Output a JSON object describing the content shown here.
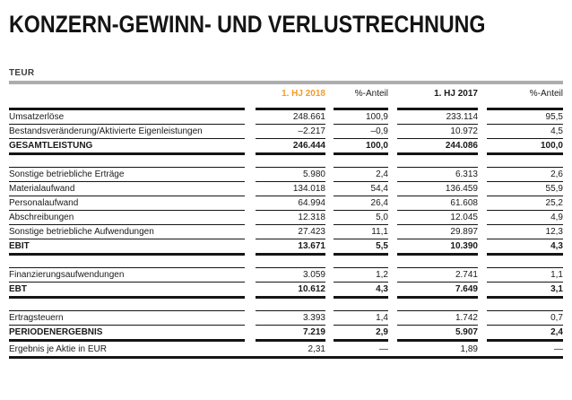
{
  "page": {
    "title": "KONZERN-GEWINN- UND VERLUSTRECHNUNG",
    "unit_label": "TEUR"
  },
  "colors": {
    "accent_orange": "#f39c2b",
    "divider_gray": "#adadad",
    "rule_black": "#151515"
  },
  "table": {
    "header": {
      "col1": "1. HJ 2018",
      "col2": "%-Anteil",
      "col3": "1. HJ 2017",
      "col4": "%-Anteil"
    },
    "sections": [
      {
        "rows": [
          {
            "label": "Umsatzerlöse",
            "bold": false,
            "top": "thick",
            "bottom": "none",
            "values": [
              "248.661",
              "100,9",
              "233.114",
              "95,5"
            ]
          },
          {
            "label": "Bestandsveränderung/Aktivierte Eigenleistungen",
            "bold": false,
            "top": "thin",
            "bottom": "none",
            "values": [
              "–2.217",
              "–0,9",
              "10.972",
              "4,5"
            ]
          },
          {
            "label": "GESAMTLEISTUNG",
            "bold": true,
            "top": "thin",
            "bottom": "thick",
            "values": [
              "246.444",
              "100,0",
              "244.086",
              "100,0"
            ]
          }
        ]
      },
      {
        "rows": [
          {
            "label": "Sonstige betriebliche Erträge",
            "bold": false,
            "top": "thin",
            "bottom": "none",
            "values": [
              "5.980",
              "2,4",
              "6.313",
              "2,6"
            ]
          },
          {
            "label": "Materialaufwand",
            "bold": false,
            "top": "thin",
            "bottom": "none",
            "values": [
              "134.018",
              "54,4",
              "136.459",
              "55,9"
            ]
          },
          {
            "label": "Personalaufwand",
            "bold": false,
            "top": "thin",
            "bottom": "none",
            "values": [
              "64.994",
              "26,4",
              "61.608",
              "25,2"
            ]
          },
          {
            "label": "Abschreibungen",
            "bold": false,
            "top": "thin",
            "bottom": "none",
            "values": [
              "12.318",
              "5,0",
              "12.045",
              "4,9"
            ]
          },
          {
            "label": "Sonstige betriebliche Aufwendungen",
            "bold": false,
            "top": "thin",
            "bottom": "none",
            "values": [
              "27.423",
              "11,1",
              "29.897",
              "12,3"
            ]
          },
          {
            "label": "EBIT",
            "bold": true,
            "top": "thin",
            "bottom": "thick",
            "values": [
              "13.671",
              "5,5",
              "10.390",
              "4,3"
            ]
          }
        ]
      },
      {
        "rows": [
          {
            "label": "Finanzierungsaufwendungen",
            "bold": false,
            "top": "thin",
            "bottom": "none",
            "values": [
              "3.059",
              "1,2",
              "2.741",
              "1,1"
            ]
          },
          {
            "label": "EBT",
            "bold": true,
            "top": "thin",
            "bottom": "thick",
            "values": [
              "10.612",
              "4,3",
              "7.649",
              "3,1"
            ]
          }
        ]
      },
      {
        "rows": [
          {
            "label": "Ertragsteuern",
            "bold": false,
            "top": "thin",
            "bottom": "none",
            "values": [
              "3.393",
              "1,4",
              "1.742",
              "0,7"
            ]
          },
          {
            "label": "PERIODENERGEBNIS",
            "bold": true,
            "top": "thin",
            "bottom": "thick",
            "values": [
              "7.219",
              "2,9",
              "5.907",
              "2,4"
            ]
          },
          {
            "label": "Ergebnis je Aktie in EUR",
            "bold": false,
            "top": "none",
            "bottom": "none",
            "values": [
              "2,31",
              "—",
              "1,89",
              "—"
            ]
          }
        ]
      }
    ]
  }
}
